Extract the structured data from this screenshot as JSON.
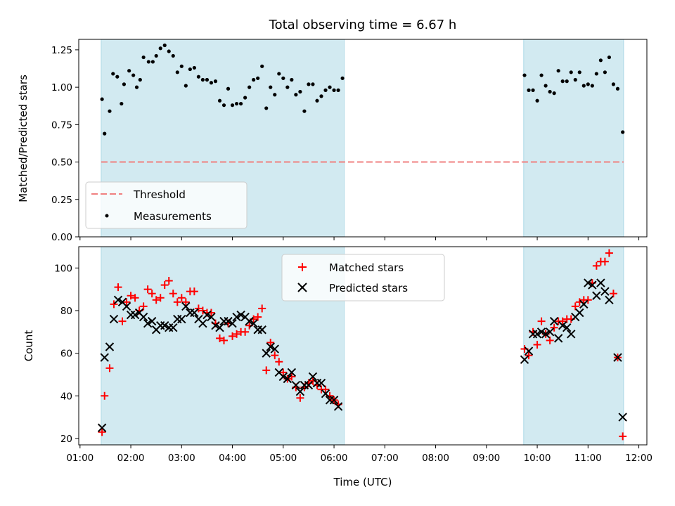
{
  "chart_data": [
    {
      "type": "scatter",
      "title": "Total observing time = 6.67 h",
      "ylabel": "Matched/Predicted stars",
      "xlabel": "",
      "xlim": [
        "01:00",
        "12:00"
      ],
      "ylim": [
        0,
        1.32
      ],
      "yticks": [
        "0.00",
        "0.25",
        "0.50",
        "0.75",
        "1.00",
        "1.25"
      ],
      "grid": false,
      "legend_position": "lower-left",
      "shaded_intervals": [
        [
          "01:25",
          "06:12"
        ],
        [
          "09:44",
          "11:42"
        ]
      ],
      "threshold": {
        "name": "Threshold",
        "value": 0.5,
        "color": "#f08080",
        "style": "dashed",
        "x_range": [
          "01:25",
          "11:42"
        ]
      },
      "series": [
        {
          "name": "Measurements",
          "marker": "dot",
          "color": "#000000",
          "points": [
            [
              "01:26",
              0.92
            ],
            [
              "01:29",
              0.69
            ],
            [
              "01:35",
              0.84
            ],
            [
              "01:39",
              1.09
            ],
            [
              "01:44",
              1.07
            ],
            [
              "01:49",
              0.89
            ],
            [
              "01:52",
              1.02
            ],
            [
              "01:58",
              1.11
            ],
            [
              "02:03",
              1.08
            ],
            [
              "02:07",
              1.0
            ],
            [
              "02:11",
              1.05
            ],
            [
              "02:15",
              1.2
            ],
            [
              "02:21",
              1.17
            ],
            [
              "02:26",
              1.17
            ],
            [
              "02:30",
              1.21
            ],
            [
              "02:35",
              1.26
            ],
            [
              "02:40",
              1.28
            ],
            [
              "02:45",
              1.24
            ],
            [
              "02:50",
              1.21
            ],
            [
              "02:55",
              1.1
            ],
            [
              "03:00",
              1.14
            ],
            [
              "03:05",
              1.01
            ],
            [
              "03:10",
              1.12
            ],
            [
              "03:15",
              1.13
            ],
            [
              "03:20",
              1.07
            ],
            [
              "03:25",
              1.05
            ],
            [
              "03:30",
              1.05
            ],
            [
              "03:35",
              1.03
            ],
            [
              "03:40",
              1.04
            ],
            [
              "03:45",
              0.91
            ],
            [
              "03:50",
              0.88
            ],
            [
              "03:55",
              0.99
            ],
            [
              "04:00",
              0.88
            ],
            [
              "04:05",
              0.89
            ],
            [
              "04:10",
              0.89
            ],
            [
              "04:15",
              0.93
            ],
            [
              "04:20",
              1.0
            ],
            [
              "04:25",
              1.05
            ],
            [
              "04:30",
              1.06
            ],
            [
              "04:35",
              1.14
            ],
            [
              "04:40",
              0.86
            ],
            [
              "04:45",
              1.0
            ],
            [
              "04:50",
              0.95
            ],
            [
              "04:55",
              1.09
            ],
            [
              "05:00",
              1.06
            ],
            [
              "05:05",
              1.0
            ],
            [
              "05:10",
              1.05
            ],
            [
              "05:15",
              0.95
            ],
            [
              "05:20",
              0.97
            ],
            [
              "05:25",
              0.84
            ],
            [
              "05:30",
              1.02
            ],
            [
              "05:35",
              1.02
            ],
            [
              "05:40",
              0.91
            ],
            [
              "05:45",
              0.94
            ],
            [
              "05:50",
              0.98
            ],
            [
              "05:55",
              1.0
            ],
            [
              "06:00",
              0.98
            ],
            [
              "06:05",
              0.98
            ],
            [
              "06:10",
              1.06
            ],
            [
              "09:45",
              1.08
            ],
            [
              "09:50",
              0.98
            ],
            [
              "09:55",
              0.98
            ],
            [
              "10:00",
              0.91
            ],
            [
              "10:05",
              1.08
            ],
            [
              "10:10",
              1.01
            ],
            [
              "10:15",
              0.97
            ],
            [
              "10:20",
              0.96
            ],
            [
              "10:25",
              1.11
            ],
            [
              "10:30",
              1.04
            ],
            [
              "10:35",
              1.04
            ],
            [
              "10:40",
              1.1
            ],
            [
              "10:45",
              1.05
            ],
            [
              "10:50",
              1.1
            ],
            [
              "10:55",
              1.01
            ],
            [
              "11:00",
              1.02
            ],
            [
              "11:05",
              1.01
            ],
            [
              "11:10",
              1.09
            ],
            [
              "11:15",
              1.18
            ],
            [
              "11:20",
              1.1
            ],
            [
              "11:25",
              1.2
            ],
            [
              "11:30",
              1.02
            ],
            [
              "11:35",
              0.99
            ],
            [
              "11:41",
              0.7
            ]
          ]
        }
      ]
    },
    {
      "type": "scatter",
      "title": "",
      "ylabel": "Count",
      "xlabel": "Time (UTC)",
      "xlim": [
        "01:00",
        "12:00"
      ],
      "xticks": [
        "01:00",
        "02:00",
        "03:00",
        "04:00",
        "05:00",
        "06:00",
        "07:00",
        "08:00",
        "09:00",
        "10:00",
        "11:00",
        "12:00"
      ],
      "ylim": [
        17,
        110
      ],
      "yticks": [
        "20",
        "40",
        "60",
        "80",
        "100"
      ],
      "grid": false,
      "legend_position": "top-center",
      "shaded_intervals": [
        [
          "01:25",
          "06:12"
        ],
        [
          "09:44",
          "11:42"
        ]
      ],
      "series": [
        {
          "name": "Matched stars",
          "marker": "plus",
          "color": "#ff0000",
          "points": [
            [
              "01:26",
              23
            ],
            [
              "01:29",
              40
            ],
            [
              "01:35",
              53
            ],
            [
              "01:40",
              83
            ],
            [
              "01:45",
              91
            ],
            [
              "01:50",
              75
            ],
            [
              "01:55",
              84
            ],
            [
              "02:00",
              87
            ],
            [
              "02:05",
              86
            ],
            [
              "02:10",
              80
            ],
            [
              "02:15",
              82
            ],
            [
              "02:20",
              90
            ],
            [
              "02:25",
              88
            ],
            [
              "02:30",
              85
            ],
            [
              "02:35",
              86
            ],
            [
              "02:40",
              92
            ],
            [
              "02:45",
              94
            ],
            [
              "02:50",
              88
            ],
            [
              "02:55",
              84
            ],
            [
              "03:00",
              86
            ],
            [
              "03:05",
              84
            ],
            [
              "03:10",
              89
            ],
            [
              "03:15",
              89
            ],
            [
              "03:20",
              81
            ],
            [
              "03:25",
              80
            ],
            [
              "03:30",
              79
            ],
            [
              "03:35",
              79
            ],
            [
              "03:40",
              74
            ],
            [
              "03:45",
              67
            ],
            [
              "03:50",
              66
            ],
            [
              "03:55",
              74
            ],
            [
              "04:00",
              68
            ],
            [
              "04:05",
              69
            ],
            [
              "04:10",
              70
            ],
            [
              "04:15",
              70
            ],
            [
              "04:20",
              73
            ],
            [
              "04:25",
              76
            ],
            [
              "04:30",
              77
            ],
            [
              "04:35",
              81
            ],
            [
              "04:40",
              52
            ],
            [
              "04:45",
              65
            ],
            [
              "04:50",
              59
            ],
            [
              "04:55",
              56
            ],
            [
              "05:00",
              51
            ],
            [
              "05:05",
              48
            ],
            [
              "05:10",
              49
            ],
            [
              "05:15",
              44
            ],
            [
              "05:20",
              39
            ],
            [
              "05:25",
              44
            ],
            [
              "05:30",
              46
            ],
            [
              "05:35",
              47
            ],
            [
              "05:40",
              45
            ],
            [
              "05:45",
              43
            ],
            [
              "05:50",
              43
            ],
            [
              "05:55",
              40
            ],
            [
              "06:00",
              38
            ],
            [
              "06:05",
              36
            ],
            [
              "09:45",
              62
            ],
            [
              "09:50",
              59
            ],
            [
              "09:55",
              70
            ],
            [
              "10:00",
              64
            ],
            [
              "10:05",
              75
            ],
            [
              "10:10",
              69
            ],
            [
              "10:15",
              66
            ],
            [
              "10:20",
              72
            ],
            [
              "10:25",
              75
            ],
            [
              "10:30",
              75
            ],
            [
              "10:35",
              76
            ],
            [
              "10:40",
              76
            ],
            [
              "10:45",
              82
            ],
            [
              "10:50",
              84
            ],
            [
              "10:55",
              85
            ],
            [
              "11:00",
              85
            ],
            [
              "11:05",
              93
            ],
            [
              "11:10",
              101
            ],
            [
              "11:15",
              103
            ],
            [
              "11:20",
              103
            ],
            [
              "11:25",
              107
            ],
            [
              "11:30",
              88
            ],
            [
              "11:35",
              58
            ],
            [
              "11:41",
              21
            ]
          ]
        },
        {
          "name": "Predicted stars",
          "marker": "x",
          "color": "#000000",
          "points": [
            [
              "01:26",
              25
            ],
            [
              "01:29",
              58
            ],
            [
              "01:35",
              63
            ],
            [
              "01:40",
              76
            ],
            [
              "01:45",
              85
            ],
            [
              "01:50",
              84
            ],
            [
              "01:55",
              82
            ],
            [
              "02:00",
              78
            ],
            [
              "02:05",
              78
            ],
            [
              "02:10",
              79
            ],
            [
              "02:15",
              77
            ],
            [
              "02:20",
              74
            ],
            [
              "02:25",
              75
            ],
            [
              "02:30",
              71
            ],
            [
              "02:35",
              73
            ],
            [
              "02:40",
              73
            ],
            [
              "02:45",
              72
            ],
            [
              "02:50",
              72
            ],
            [
              "02:55",
              76
            ],
            [
              "03:00",
              76
            ],
            [
              "03:05",
              82
            ],
            [
              "03:10",
              79
            ],
            [
              "03:15",
              79
            ],
            [
              "03:20",
              76
            ],
            [
              "03:25",
              74
            ],
            [
              "03:30",
              78
            ],
            [
              "03:35",
              77
            ],
            [
              "03:40",
              73
            ],
            [
              "03:45",
              72
            ],
            [
              "03:50",
              75
            ],
            [
              "03:55",
              75
            ],
            [
              "04:00",
              74
            ],
            [
              "04:05",
              77
            ],
            [
              "04:10",
              78
            ],
            [
              "04:15",
              77
            ],
            [
              "04:20",
              75
            ],
            [
              "04:25",
              74
            ],
            [
              "04:30",
              71
            ],
            [
              "04:35",
              71
            ],
            [
              "04:40",
              60
            ],
            [
              "04:45",
              63
            ],
            [
              "04:50",
              62
            ],
            [
              "04:55",
              51
            ],
            [
              "05:00",
              49
            ],
            [
              "05:05",
              48
            ],
            [
              "05:10",
              51
            ],
            [
              "05:15",
              45
            ],
            [
              "05:20",
              42
            ],
            [
              "05:25",
              45
            ],
            [
              "05:30",
              45
            ],
            [
              "05:35",
              49
            ],
            [
              "05:40",
              46
            ],
            [
              "05:45",
              46
            ],
            [
              "05:50",
              41
            ],
            [
              "05:55",
              38
            ],
            [
              "06:00",
              38
            ],
            [
              "06:05",
              35
            ],
            [
              "09:45",
              57
            ],
            [
              "09:50",
              61
            ],
            [
              "09:55",
              69
            ],
            [
              "10:00",
              69
            ],
            [
              "10:05",
              70
            ],
            [
              "10:10",
              69
            ],
            [
              "10:15",
              70
            ],
            [
              "10:20",
              75
            ],
            [
              "10:25",
              67
            ],
            [
              "10:30",
              73
            ],
            [
              "10:35",
              72
            ],
            [
              "10:40",
              69
            ],
            [
              "10:45",
              77
            ],
            [
              "10:50",
              79
            ],
            [
              "10:55",
              83
            ],
            [
              "11:00",
              93
            ],
            [
              "11:05",
              92
            ],
            [
              "11:10",
              87
            ],
            [
              "11:15",
              93
            ],
            [
              "11:20",
              89
            ],
            [
              "11:25",
              85
            ],
            [
              "11:35",
              58
            ],
            [
              "11:41",
              30
            ]
          ]
        }
      ]
    }
  ],
  "colors": {
    "shade": "#add8e6",
    "threshold": "#f08080",
    "matched": "#ff0000",
    "predicted": "#000000",
    "measurements": "#000000"
  }
}
